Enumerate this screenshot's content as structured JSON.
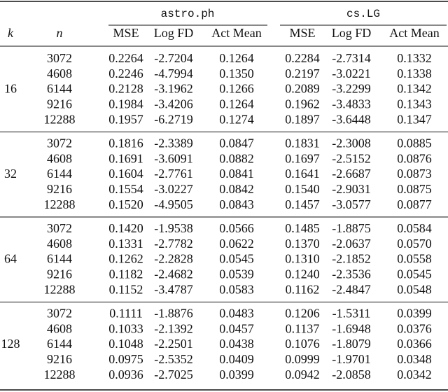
{
  "table": {
    "groups": [
      "astro.ph",
      "cs.LG"
    ],
    "columns": [
      "k",
      "n",
      "MSE",
      "Log FD",
      "Act Mean",
      "MSE",
      "Log FD",
      "Act Mean"
    ],
    "blocks": [
      {
        "k": "16",
        "rows": [
          {
            "n": "3072",
            "cells": [
              "0.2264",
              "-2.7204",
              "0.1264",
              "0.2284",
              "-2.7314",
              "0.1332"
            ]
          },
          {
            "n": "4608",
            "cells": [
              "0.2246",
              "-4.7994",
              "0.1350",
              "0.2197",
              "-3.0221",
              "0.1338"
            ]
          },
          {
            "n": "6144",
            "cells": [
              "0.2128",
              "-3.1962",
              "0.1266",
              "0.2089",
              "-3.2299",
              "0.1342"
            ]
          },
          {
            "n": "9216",
            "cells": [
              "0.1984",
              "-3.4206",
              "0.1264",
              "0.1962",
              "-3.4833",
              "0.1343"
            ]
          },
          {
            "n": "12288",
            "cells": [
              "0.1957",
              "-6.2719",
              "0.1274",
              "0.1897",
              "-3.6448",
              "0.1347"
            ]
          }
        ]
      },
      {
        "k": "32",
        "rows": [
          {
            "n": "3072",
            "cells": [
              "0.1816",
              "-2.3389",
              "0.0847",
              "0.1831",
              "-2.3008",
              "0.0885"
            ]
          },
          {
            "n": "4608",
            "cells": [
              "0.1691",
              "-3.6091",
              "0.0882",
              "0.1697",
              "-2.5152",
              "0.0876"
            ]
          },
          {
            "n": "6144",
            "cells": [
              "0.1604",
              "-2.7761",
              "0.0841",
              "0.1641",
              "-2.6687",
              "0.0873"
            ]
          },
          {
            "n": "9216",
            "cells": [
              "0.1554",
              "-3.0227",
              "0.0842",
              "0.1540",
              "-2.9031",
              "0.0875"
            ]
          },
          {
            "n": "12288",
            "cells": [
              "0.1520",
              "-4.9505",
              "0.0843",
              "0.1457",
              "-3.0577",
              "0.0877"
            ]
          }
        ]
      },
      {
        "k": "64",
        "rows": [
          {
            "n": "3072",
            "cells": [
              "0.1420",
              "-1.9538",
              "0.0566",
              "0.1485",
              "-1.8875",
              "0.0584"
            ]
          },
          {
            "n": "4608",
            "cells": [
              "0.1331",
              "-2.7782",
              "0.0622",
              "0.1370",
              "-2.0637",
              "0.0570"
            ]
          },
          {
            "n": "6144",
            "cells": [
              "0.1262",
              "-2.2828",
              "0.0545",
              "0.1310",
              "-2.1852",
              "0.0558"
            ]
          },
          {
            "n": "9216",
            "cells": [
              "0.1182",
              "-2.4682",
              "0.0539",
              "0.1240",
              "-2.3536",
              "0.0545"
            ]
          },
          {
            "n": "12288",
            "cells": [
              "0.1152",
              "-3.4787",
              "0.0583",
              "0.1162",
              "-2.4847",
              "0.0548"
            ]
          }
        ]
      },
      {
        "k": "128",
        "rows": [
          {
            "n": "3072",
            "cells": [
              "0.1111",
              "-1.8876",
              "0.0483",
              "0.1206",
              "-1.5311",
              "0.0399"
            ]
          },
          {
            "n": "4608",
            "cells": [
              "0.1033",
              "-2.1392",
              "0.0457",
              "0.1137",
              "-1.6948",
              "0.0376"
            ]
          },
          {
            "n": "6144",
            "cells": [
              "0.1048",
              "-2.2501",
              "0.0438",
              "0.1076",
              "-1.8079",
              "0.0366"
            ]
          },
          {
            "n": "9216",
            "cells": [
              "0.0975",
              "-2.5352",
              "0.0409",
              "0.0999",
              "-1.9701",
              "0.0348"
            ]
          },
          {
            "n": "12288",
            "cells": [
              "0.0936",
              "-2.7025",
              "0.0399",
              "0.0942",
              "-2.0858",
              "0.0342"
            ]
          }
        ]
      }
    ]
  }
}
